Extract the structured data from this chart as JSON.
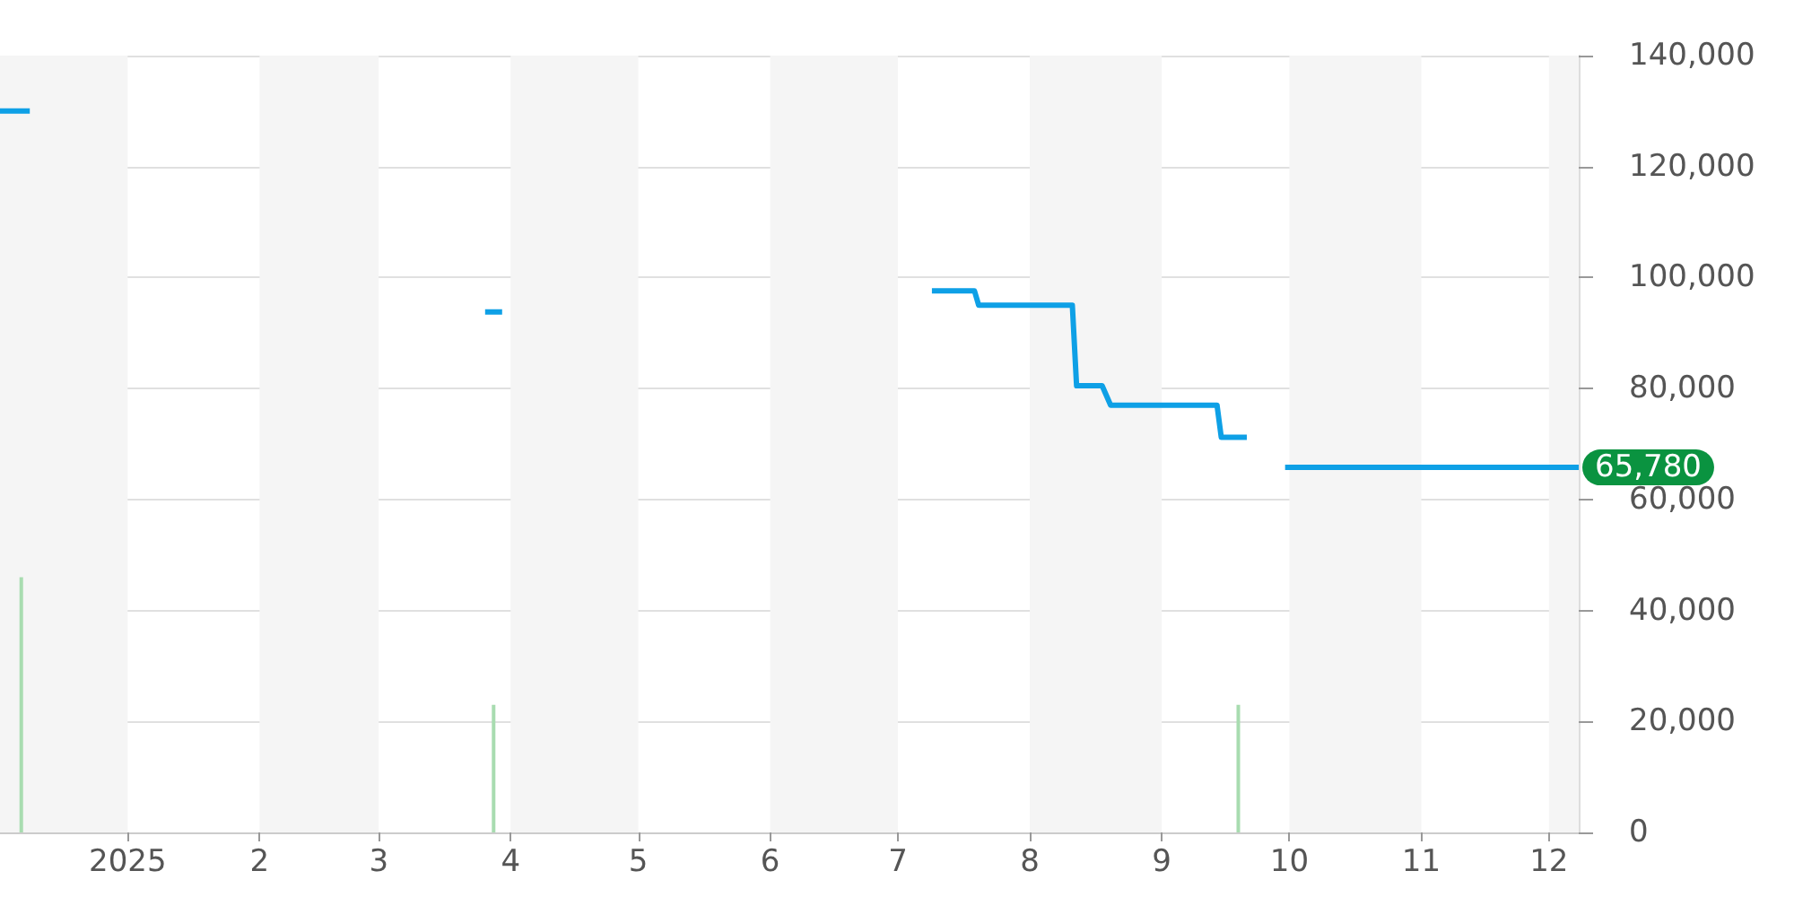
{
  "chart_data": {
    "type": "line",
    "xlim": [
      "2024-12-02",
      "2025-12-08"
    ],
    "xticks": [
      {
        "value": "2025-01-01",
        "label": "2025"
      },
      {
        "value": "2025-02-01",
        "label": "2"
      },
      {
        "value": "2025-03-01",
        "label": "3"
      },
      {
        "value": "2025-04-01",
        "label": "4"
      },
      {
        "value": "2025-05-01",
        "label": "5"
      },
      {
        "value": "2025-06-01",
        "label": "6"
      },
      {
        "value": "2025-07-01",
        "label": "7"
      },
      {
        "value": "2025-08-01",
        "label": "8"
      },
      {
        "value": "2025-09-01",
        "label": "9"
      },
      {
        "value": "2025-10-01",
        "label": "10"
      },
      {
        "value": "2025-11-01",
        "label": "11"
      },
      {
        "value": "2025-12-01",
        "label": "12"
      }
    ],
    "ylim": [
      0,
      140000
    ],
    "yticks": [
      0,
      {
        "value": 20000,
        "label": "20,000"
      },
      {
        "value": 40000,
        "label": "40,000"
      },
      {
        "value": 60000,
        "label": "60,000"
      },
      {
        "value": 80000,
        "label": "80,000"
      },
      {
        "value": 100000,
        "label": "100,000"
      },
      {
        "value": 120000,
        "label": "120,000"
      },
      {
        "value": 140000,
        "label": "140,000"
      }
    ],
    "grid": "y",
    "bands": [
      {
        "axis": "x",
        "from": "2024-12-02",
        "to": "2025-01-01",
        "color": "#f5f5f5"
      },
      {
        "axis": "x",
        "from": "2025-02-01",
        "to": "2025-03-01",
        "color": "#f5f5f5"
      },
      {
        "axis": "x",
        "from": "2025-04-01",
        "to": "2025-05-01",
        "color": "#f5f5f5"
      },
      {
        "axis": "x",
        "from": "2025-06-01",
        "to": "2025-07-01",
        "color": "#f5f5f5"
      },
      {
        "axis": "x",
        "from": "2025-08-01",
        "to": "2025-09-01",
        "color": "#f5f5f5"
      },
      {
        "axis": "x",
        "from": "2025-10-01",
        "to": "2025-11-01",
        "color": "#f5f5f5"
      },
      {
        "axis": "x",
        "from": "2025-12-01",
        "to": "2025-12-08",
        "color": "#f5f5f5"
      }
    ],
    "series": [
      {
        "color": "#0ea0e6",
        "x": [
          "2024-12-02",
          "2024-12-09",
          "2025-01-15",
          "2025-03-26",
          "2025-03-30",
          "2025-05-15",
          "2025-07-09",
          "2025-07-19",
          "2025-07-20",
          "2025-08-11",
          "2025-08-12",
          "2025-08-18",
          "2025-08-20",
          "2025-09-14",
          "2025-09-15",
          "2025-09-21",
          "2025-09-25",
          "2025-09-30",
          "2025-12-08"
        ],
        "values": [
          130000,
          130000,
          null,
          93800,
          93800,
          null,
          97600,
          97600,
          95000,
          95000,
          80500,
          80500,
          77000,
          77000,
          71200,
          71200,
          null,
          65780,
          65780
        ],
        "value_labels": [
          null,
          null,
          null,
          null,
          null,
          null,
          null,
          null,
          null,
          null,
          null,
          null,
          null,
          null,
          null,
          null,
          null,
          null,
          "65,780"
        ]
      },
      {
        "type": "bar",
        "color": "#a8dcb0",
        "x": [
          "2024-12-07",
          "2025-03-28",
          "2025-09-19"
        ],
        "values": [
          46000,
          23000,
          23000
        ]
      }
    ]
  }
}
